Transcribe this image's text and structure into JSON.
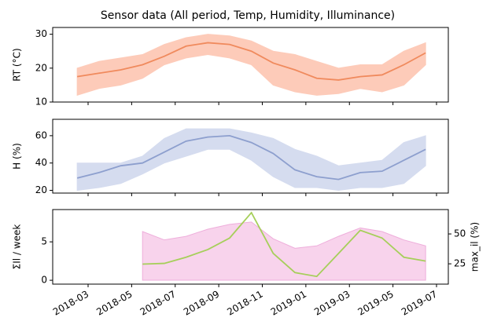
{
  "chart_data": [
    {
      "type": "line",
      "title": "Sensor data (All period, Temp, Humidity, Illuminance)",
      "ylabel": "RT (°C)",
      "x": [
        "2018-02",
        "2018-03",
        "2018-04",
        "2018-05",
        "2018-06",
        "2018-07",
        "2018-08",
        "2018-09",
        "2018-10",
        "2018-11",
        "2018-12",
        "2019-01",
        "2019-02",
        "2019-03",
        "2019-04",
        "2019-05",
        "2019-06"
      ],
      "series": [
        {
          "color": "#f08a5d",
          "band_color": "#fdcbb9",
          "values": [
            17.5,
            18.5,
            19.5,
            21,
            23.5,
            26.5,
            27.5,
            27,
            25,
            21.5,
            19.5,
            17,
            16.5,
            17.5,
            18,
            21,
            24.5
          ],
          "band_low": [
            12,
            14,
            15,
            17,
            21,
            23,
            24,
            23,
            21,
            15,
            13,
            12,
            12.5,
            14,
            13,
            15,
            21
          ],
          "band_high": [
            20,
            22,
            23,
            24,
            27,
            29,
            30,
            29.5,
            28,
            25,
            24,
            22,
            20,
            21,
            21,
            25,
            27.5
          ]
        }
      ],
      "ylim": [
        10,
        32
      ],
      "yticks": [
        10,
        20,
        30
      ],
      "xticks": [
        "2018-03",
        "2018-05",
        "2018-07",
        "2018-09",
        "2018-11",
        "2019-01",
        "2019-03",
        "2019-05",
        "2019-07"
      ]
    },
    {
      "type": "line",
      "ylabel": "H (%)",
      "x": [
        "2018-02",
        "2018-03",
        "2018-04",
        "2018-05",
        "2018-06",
        "2018-07",
        "2018-08",
        "2018-09",
        "2018-10",
        "2018-11",
        "2018-12",
        "2019-01",
        "2019-02",
        "2019-03",
        "2019-04",
        "2019-05",
        "2019-06"
      ],
      "series": [
        {
          "color": "#8d9fce",
          "band_color": "#d5dcef",
          "values": [
            29,
            33,
            38,
            40,
            48,
            56,
            59,
            60,
            55,
            47,
            35,
            30,
            28,
            33,
            34,
            42,
            50
          ],
          "band_low": [
            20,
            22,
            25,
            32,
            40,
            45,
            50,
            50,
            42,
            30,
            22,
            22,
            20,
            22,
            22,
            25,
            38
          ],
          "band_high": [
            40,
            40,
            40,
            45,
            58,
            65,
            65,
            65,
            62,
            58,
            50,
            45,
            38,
            40,
            42,
            55,
            60
          ]
        }
      ],
      "ylim": [
        18,
        72
      ],
      "yticks": [
        20,
        40,
        60
      ],
      "xticks": [
        "2018-03",
        "2018-05",
        "2018-07",
        "2018-09",
        "2018-11",
        "2019-01",
        "2019-03",
        "2019-05",
        "2019-07"
      ]
    },
    {
      "type": "line",
      "ylabel": "ΣIl / week",
      "y2label": "max_il (%)",
      "x": [
        "2018-02",
        "2018-03",
        "2018-04",
        "2018-05",
        "2018-06",
        "2018-07",
        "2018-08",
        "2018-09",
        "2018-10",
        "2018-11",
        "2018-12",
        "2019-01",
        "2019-02",
        "2019-03",
        "2019-04",
        "2019-05",
        "2019-06"
      ],
      "series": [
        {
          "color": "#f8d3ec",
          "edge_color": "#eeaedb",
          "style": "area",
          "axis": "y2",
          "values": [
            null,
            null,
            null,
            52,
            45,
            48,
            54,
            58,
            60,
            46,
            38,
            40,
            48,
            55,
            52,
            45,
            40
          ]
        },
        {
          "color": "#a6cf5a",
          "values": [
            null,
            null,
            null,
            2.1,
            2.2,
            3.0,
            4.0,
            5.5,
            8.8,
            3.5,
            1.0,
            0.5,
            3.5,
            6.5,
            5.5,
            3.0,
            2.5
          ]
        }
      ],
      "ylim": [
        -0.5,
        9.2
      ],
      "yticks": [
        0,
        5
      ],
      "y2lim": [
        8,
        70.4
      ],
      "y2ticks": [
        25,
        50
      ],
      "xticks": [
        "2018-03",
        "2018-05",
        "2018-07",
        "2018-09",
        "2018-11",
        "2019-01",
        "2019-03",
        "2019-05",
        "2019-07"
      ]
    }
  ]
}
